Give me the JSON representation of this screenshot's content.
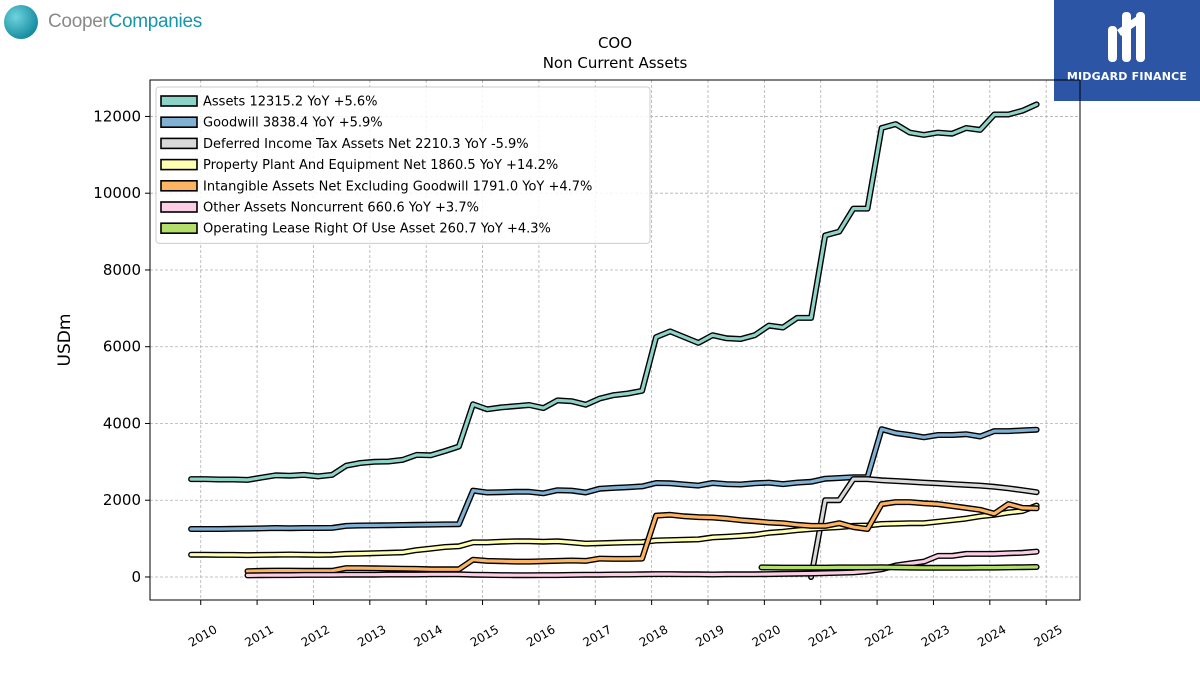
{
  "logos": {
    "left": {
      "part1": "Cooper",
      "part2": "Companies"
    },
    "right": {
      "text": "MIDGARD FINANCE"
    }
  },
  "chart_data": {
    "type": "line",
    "title": "COO",
    "subtitle": "Non Current  Assets",
    "ylabel": "USDm",
    "xlabel": "",
    "xlim": [
      2009.1,
      2025.6
    ],
    "ylim": [
      -600,
      12950
    ],
    "yticks": [
      0,
      2000,
      4000,
      6000,
      8000,
      10000,
      12000
    ],
    "xticks": [
      2010,
      2011,
      2012,
      2013,
      2014,
      2015,
      2016,
      2017,
      2018,
      2019,
      2020,
      2021,
      2022,
      2023,
      2024,
      2025
    ],
    "grid": true,
    "legend_position": "top-left",
    "series": [
      {
        "name": "Assets",
        "legend": "Assets  12315.2 YoY +5.6%",
        "color": "#8dd3c7",
        "x": [
          2009.83,
          2010.08,
          2010.33,
          2010.58,
          2010.83,
          2011.08,
          2011.33,
          2011.58,
          2011.83,
          2012.08,
          2012.33,
          2012.58,
          2012.83,
          2013.08,
          2013.33,
          2013.58,
          2013.83,
          2014.08,
          2014.33,
          2014.58,
          2014.83,
          2015.08,
          2015.33,
          2015.58,
          2015.83,
          2016.08,
          2016.33,
          2016.58,
          2016.83,
          2017.08,
          2017.33,
          2017.58,
          2017.83,
          2018.08,
          2018.33,
          2018.58,
          2018.83,
          2019.08,
          2019.33,
          2019.58,
          2019.83,
          2020.08,
          2020.33,
          2020.58,
          2020.83,
          2021.08,
          2021.33,
          2021.58,
          2021.83,
          2022.08,
          2022.33,
          2022.58,
          2022.83,
          2023.08,
          2023.33,
          2023.58,
          2023.83,
          2024.08,
          2024.33,
          2024.58,
          2024.83
        ],
        "y": [
          2550,
          2550,
          2540,
          2540,
          2530,
          2590,
          2650,
          2640,
          2660,
          2620,
          2660,
          2900,
          2970,
          3000,
          3010,
          3050,
          3180,
          3170,
          3280,
          3400,
          4500,
          4370,
          4420,
          4450,
          4480,
          4400,
          4600,
          4580,
          4490,
          4650,
          4740,
          4780,
          4850,
          6250,
          6400,
          6250,
          6100,
          6300,
          6220,
          6200,
          6300,
          6550,
          6500,
          6750,
          6750,
          8900,
          9000,
          9600,
          9600,
          11700,
          11800,
          11580,
          11520,
          11580,
          11550,
          11700,
          11650,
          12050,
          12050,
          12150,
          12315
        ]
      },
      {
        "name": "Goodwill",
        "legend": "Goodwill  3838.4 YoY +5.9%",
        "color": "#80b1d3",
        "x": [
          2009.83,
          2010.08,
          2010.33,
          2010.58,
          2010.83,
          2011.08,
          2011.33,
          2011.58,
          2011.83,
          2012.08,
          2012.33,
          2012.58,
          2012.83,
          2013.08,
          2013.33,
          2013.58,
          2013.83,
          2014.08,
          2014.33,
          2014.58,
          2014.83,
          2015.08,
          2015.33,
          2015.58,
          2015.83,
          2016.08,
          2016.33,
          2016.58,
          2016.83,
          2017.08,
          2017.33,
          2017.58,
          2017.83,
          2018.08,
          2018.33,
          2018.58,
          2018.83,
          2019.08,
          2019.33,
          2019.58,
          2019.83,
          2020.08,
          2020.33,
          2020.58,
          2020.83,
          2021.08,
          2021.33,
          2021.58,
          2021.83,
          2022.08,
          2022.33,
          2022.58,
          2022.83,
          2023.08,
          2023.33,
          2023.58,
          2023.83,
          2024.08,
          2024.33,
          2024.58,
          2024.83
        ],
        "y": [
          1250,
          1250,
          1250,
          1255,
          1260,
          1265,
          1275,
          1270,
          1275,
          1275,
          1280,
          1330,
          1340,
          1345,
          1350,
          1355,
          1360,
          1365,
          1370,
          1375,
          2250,
          2200,
          2210,
          2220,
          2220,
          2180,
          2260,
          2250,
          2200,
          2300,
          2320,
          2340,
          2360,
          2450,
          2440,
          2410,
          2380,
          2450,
          2420,
          2410,
          2440,
          2460,
          2420,
          2460,
          2480,
          2560,
          2580,
          2600,
          2600,
          3850,
          3750,
          3700,
          3640,
          3700,
          3700,
          3720,
          3660,
          3800,
          3800,
          3820,
          3838
        ]
      },
      {
        "name": "Deferred Income Tax Assets Net",
        "legend": "Deferred Income Tax Assets Net  2210.3 YoY -5.9%",
        "color": "#d9d9d9",
        "x": [
          2020.83,
          2021.08,
          2021.33,
          2021.58,
          2021.83,
          2022.08,
          2022.33,
          2022.58,
          2022.83,
          2023.08,
          2023.33,
          2023.58,
          2023.83,
          2024.08,
          2024.33,
          2024.58,
          2024.83
        ],
        "y": [
          0,
          2000,
          2000,
          2550,
          2550,
          2520,
          2500,
          2480,
          2460,
          2440,
          2420,
          2400,
          2380,
          2350,
          2310,
          2260,
          2210
        ]
      },
      {
        "name": "Property Plant And Equipment Net",
        "legend": "Property Plant And Equipment Net  1860.5 YoY +14.2%",
        "color": "#ffffb3",
        "x": [
          2009.83,
          2010.08,
          2010.33,
          2010.58,
          2010.83,
          2011.08,
          2011.33,
          2011.58,
          2011.83,
          2012.08,
          2012.33,
          2012.58,
          2012.83,
          2013.08,
          2013.33,
          2013.58,
          2013.83,
          2014.08,
          2014.33,
          2014.58,
          2014.83,
          2015.08,
          2015.33,
          2015.58,
          2015.83,
          2016.08,
          2016.33,
          2016.58,
          2016.83,
          2017.08,
          2017.33,
          2017.58,
          2017.83,
          2018.08,
          2018.33,
          2018.58,
          2018.83,
          2019.08,
          2019.33,
          2019.58,
          2019.83,
          2020.08,
          2020.33,
          2020.58,
          2020.83,
          2021.08,
          2021.33,
          2021.58,
          2021.83,
          2022.08,
          2022.33,
          2022.58,
          2022.83,
          2023.08,
          2023.33,
          2023.58,
          2023.83,
          2024.08,
          2024.33,
          2024.58,
          2024.83
        ],
        "y": [
          580,
          580,
          575,
          575,
          570,
          575,
          580,
          585,
          580,
          575,
          580,
          600,
          610,
          620,
          630,
          640,
          700,
          740,
          780,
          800,
          900,
          900,
          920,
          930,
          930,
          920,
          930,
          900,
          870,
          880,
          890,
          900,
          910,
          950,
          960,
          970,
          980,
          1030,
          1050,
          1070,
          1100,
          1150,
          1180,
          1220,
          1250,
          1280,
          1300,
          1330,
          1340,
          1380,
          1390,
          1400,
          1400,
          1440,
          1480,
          1520,
          1580,
          1620,
          1680,
          1720,
          1860
        ]
      },
      {
        "name": "Intangible Assets Net Excluding Goodwill",
        "legend": "Intangible Assets Net Excluding Goodwill  1791.0 YoY +4.7%",
        "color": "#fdb462",
        "x": [
          2010.83,
          2011.08,
          2011.33,
          2011.58,
          2011.83,
          2012.08,
          2012.33,
          2012.58,
          2012.83,
          2013.08,
          2013.33,
          2013.58,
          2013.83,
          2014.08,
          2014.33,
          2014.58,
          2014.83,
          2015.08,
          2015.33,
          2015.58,
          2015.83,
          2016.08,
          2016.33,
          2016.58,
          2016.83,
          2017.08,
          2017.33,
          2017.58,
          2017.83,
          2018.08,
          2018.33,
          2018.58,
          2018.83,
          2019.08,
          2019.33,
          2019.58,
          2019.83,
          2020.08,
          2020.33,
          2020.58,
          2020.83,
          2021.08,
          2021.33,
          2021.58,
          2021.83,
          2022.08,
          2022.33,
          2022.58,
          2022.83,
          2023.08,
          2023.33,
          2023.58,
          2023.83,
          2024.08,
          2024.33,
          2024.58,
          2024.83
        ],
        "y": [
          150,
          160,
          165,
          165,
          160,
          160,
          160,
          230,
          230,
          225,
          220,
          215,
          210,
          200,
          200,
          200,
          450,
          420,
          410,
          400,
          400,
          410,
          420,
          430,
          420,
          480,
          470,
          470,
          480,
          1600,
          1620,
          1580,
          1560,
          1550,
          1520,
          1480,
          1450,
          1420,
          1400,
          1360,
          1330,
          1330,
          1400,
          1300,
          1250,
          1900,
          1950,
          1950,
          1920,
          1900,
          1850,
          1800,
          1750,
          1650,
          1900,
          1800,
          1790
        ]
      },
      {
        "name": "Other Assets Noncurrent",
        "legend": "Other Assets Noncurrent  660.6 YoY +3.7%",
        "color": "#fccde5",
        "x": [
          2010.83,
          2011.08,
          2011.33,
          2011.58,
          2011.83,
          2012.08,
          2012.33,
          2012.58,
          2012.83,
          2013.08,
          2013.33,
          2013.58,
          2013.83,
          2014.08,
          2014.33,
          2014.58,
          2014.83,
          2015.08,
          2015.33,
          2015.58,
          2015.83,
          2016.08,
          2016.33,
          2016.58,
          2016.83,
          2017.08,
          2017.33,
          2017.58,
          2017.83,
          2018.08,
          2018.33,
          2018.58,
          2018.83,
          2019.08,
          2019.33,
          2019.58,
          2019.83,
          2020.08,
          2020.33,
          2020.58,
          2020.83,
          2021.08,
          2021.33,
          2021.58,
          2021.83,
          2022.08,
          2022.33,
          2022.58,
          2022.83,
          2023.08,
          2023.33,
          2023.58,
          2023.83,
          2024.08,
          2024.33,
          2024.58,
          2024.83
        ],
        "y": [
          40,
          45,
          50,
          50,
          55,
          55,
          55,
          60,
          60,
          60,
          65,
          65,
          65,
          70,
          70,
          70,
          60,
          55,
          50,
          45,
          45,
          50,
          50,
          55,
          60,
          60,
          65,
          65,
          70,
          75,
          75,
          70,
          70,
          65,
          70,
          70,
          70,
          75,
          80,
          85,
          90,
          100,
          110,
          120,
          150,
          200,
          300,
          350,
          400,
          550,
          550,
          600,
          600,
          600,
          620,
          630,
          660
        ]
      },
      {
        "name": "Operating Lease Right Of Use Asset",
        "legend": "Operating Lease Right Of Use Asset  260.7 YoY +4.3%",
        "color": "#b3de69",
        "x": [
          2019.95,
          2020.33,
          2020.58,
          2020.83,
          2021.08,
          2021.33,
          2021.58,
          2021.83,
          2022.08,
          2022.33,
          2022.58,
          2022.83,
          2023.08,
          2023.33,
          2023.58,
          2023.83,
          2024.08,
          2024.33,
          2024.58,
          2024.83
        ],
        "y": [
          250,
          245,
          245,
          245,
          245,
          250,
          250,
          250,
          255,
          250,
          245,
          240,
          240,
          240,
          240,
          245,
          245,
          250,
          255,
          260
        ]
      }
    ]
  }
}
